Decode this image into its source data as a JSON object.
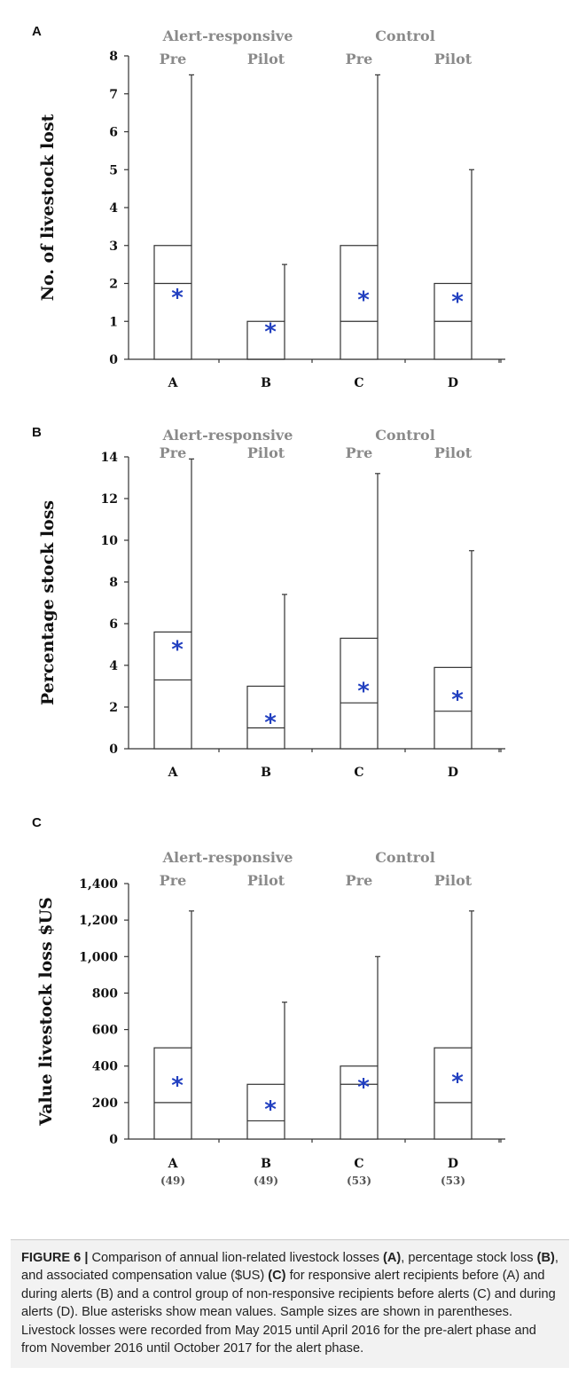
{
  "chart_data": [
    {
      "type": "box",
      "panel": "A",
      "group_labels": [
        "Alert-responsive",
        "Control"
      ],
      "phase_labels": [
        "Pre",
        "Pilot",
        "Pre",
        "Pilot"
      ],
      "ylabel": "No. of livestock lost",
      "ylim": [
        0,
        8
      ],
      "yticks": [
        "0",
        "1",
        "2",
        "3",
        "4",
        "5",
        "6",
        "7",
        "8"
      ],
      "categories": [
        "A",
        "B",
        "C",
        "D"
      ],
      "sample_sizes": [],
      "series": [
        {
          "q1": 0,
          "median": 2,
          "q3": 3,
          "whisker_low": 0,
          "whisker_high": 7.5,
          "mean": 1.75
        },
        {
          "q1": 0,
          "median": 0,
          "q3": 1,
          "whisker_low": 0,
          "whisker_high": 2.5,
          "mean": 0.85
        },
        {
          "q1": 0,
          "median": 1,
          "q3": 3,
          "whisker_low": 0,
          "whisker_high": 7.5,
          "mean": 1.7
        },
        {
          "q1": 0,
          "median": 1,
          "q3": 2,
          "whisker_low": 0,
          "whisker_high": 5,
          "mean": 1.65
        }
      ]
    },
    {
      "type": "box",
      "panel": "B",
      "group_labels": [
        "Alert-responsive",
        "Control"
      ],
      "phase_labels": [
        "Pre",
        "Pilot",
        "Pre",
        "Pilot"
      ],
      "ylabel": "Percentage stock loss",
      "ylim": [
        0,
        14
      ],
      "yticks": [
        "0",
        "2",
        "4",
        "6",
        "8",
        "10",
        "12",
        "14"
      ],
      "categories": [
        "A",
        "B",
        "C",
        "D"
      ],
      "sample_sizes": [],
      "series": [
        {
          "q1": 0,
          "median": 3.3,
          "q3": 5.6,
          "whisker_low": 0,
          "whisker_high": 13.9,
          "mean": 5.0
        },
        {
          "q1": 0,
          "median": 1.0,
          "q3": 3.0,
          "whisker_low": 0,
          "whisker_high": 7.4,
          "mean": 1.5
        },
        {
          "q1": 0,
          "median": 2.2,
          "q3": 5.3,
          "whisker_low": 0,
          "whisker_high": 13.2,
          "mean": 3.0
        },
        {
          "q1": 0,
          "median": 1.8,
          "q3": 3.9,
          "whisker_low": 0,
          "whisker_high": 9.5,
          "mean": 2.6
        }
      ]
    },
    {
      "type": "box",
      "panel": "C",
      "group_labels": [
        "Alert-responsive",
        "Control"
      ],
      "phase_labels": [
        "Pre",
        "Pilot",
        "Pre",
        "Pilot"
      ],
      "ylabel": "Value livestock loss $US",
      "ylim": [
        0,
        1400
      ],
      "yticks": [
        "0",
        "200",
        "400",
        "600",
        "800",
        "1,000",
        "1,200",
        "1,400"
      ],
      "categories": [
        "A",
        "B",
        "C",
        "D"
      ],
      "sample_sizes": [
        "(49)",
        "(49)",
        "(53)",
        "(53)"
      ],
      "series": [
        {
          "q1": 0,
          "median": 200,
          "q3": 500,
          "whisker_low": 0,
          "whisker_high": 1250,
          "mean": 320
        },
        {
          "q1": 0,
          "median": 100,
          "q3": 300,
          "whisker_low": 0,
          "whisker_high": 750,
          "mean": 190
        },
        {
          "q1": 0,
          "median": 300,
          "q3": 400,
          "whisker_low": 0,
          "whisker_high": 1000,
          "mean": 310
        },
        {
          "q1": 0,
          "median": 200,
          "q3": 500,
          "whisker_low": 0,
          "whisker_high": 1250,
          "mean": 340
        }
      ]
    }
  ],
  "caption": {
    "figure_label": "FIGURE 6 |",
    "t1": " Comparison of annual lion-related livestock losses ",
    "b1": "(A)",
    "t2": ", percentage stock loss ",
    "b2": "(B)",
    "t3": ", and associated compensation value ($US) ",
    "b3": "(C)",
    "t4": " for responsive alert recipients before (A) and during alerts (B) and a control group of non-responsive recipients before alerts (C) and during alerts (D). Blue asterisks show mean values. Sample sizes are shown in parentheses. Livestock losses were recorded from May 2015 until April 2016 for the pre-alert phase and from November 2016 until October 2017 for the alert phase."
  },
  "colors": {
    "mean_marker": "#2240c0",
    "header_text": "#8a8a8a",
    "axis": "#333333"
  }
}
